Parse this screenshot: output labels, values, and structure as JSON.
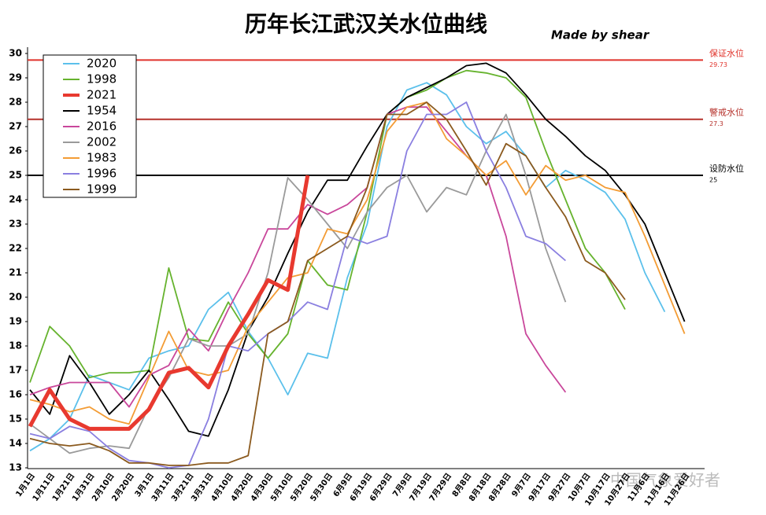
{
  "chart_data": {
    "type": "line",
    "title": "历年长江武汉关水位曲线",
    "subtitle": "Made  by shear",
    "watermark": "中国气象爱好者",
    "categories": [
      "1月1日",
      "1月11日",
      "1月21日",
      "1月31日",
      "2月10日",
      "2月20日",
      "3月1日",
      "3月11日",
      "3月21日",
      "3月31日",
      "4月10日",
      "4月20日",
      "4月30日",
      "5月10日",
      "5月20日",
      "5月30日",
      "6月9日",
      "6月19日",
      "6月29日",
      "7月9日",
      "7月19日",
      "7月29日",
      "8月8日",
      "8月18日",
      "8月28日",
      "9月7日",
      "9月17日",
      "9月27日",
      "10月7日",
      "10月17日",
      "10月27日",
      "11月6日",
      "11月16日",
      "11月26日"
    ],
    "ylim": [
      13,
      30
    ],
    "yticks": [
      13,
      14,
      15,
      16,
      17,
      18,
      19,
      20,
      21,
      22,
      23,
      24,
      25,
      26,
      27,
      28,
      29,
      30
    ],
    "reference_lines": [
      {
        "label": "保证水位",
        "value": 29.73,
        "color": "#e0332b"
      },
      {
        "label": "警戒水位",
        "value": 27.3,
        "color": "#b5302a"
      },
      {
        "label": "设防水位",
        "value": 25,
        "color": "#000000"
      }
    ],
    "series": [
      {
        "name": "2020",
        "color": "#5bc0eb",
        "values": [
          13.7,
          14.2,
          15.0,
          16.8,
          16.5,
          16.2,
          17.5,
          17.8,
          18.0,
          19.5,
          20.2,
          18.6,
          17.5,
          16.0,
          17.7,
          17.5,
          20.8,
          23.0,
          27.0,
          28.5,
          28.8,
          28.3,
          27.0,
          26.3,
          26.8,
          25.8,
          24.5,
          25.2,
          24.8,
          24.3,
          23.2,
          21.0,
          19.4,
          null
        ]
      },
      {
        "name": "1998",
        "color": "#66b32e",
        "values": [
          16.5,
          18.8,
          18.0,
          16.7,
          16.9,
          16.9,
          17.0,
          21.2,
          18.3,
          18.2,
          19.8,
          18.5,
          17.5,
          18.5,
          21.5,
          20.5,
          20.3,
          23.5,
          27.5,
          28.2,
          28.5,
          29.0,
          29.3,
          29.2,
          29.0,
          28.2,
          26.0,
          24.0,
          22.0,
          21.0,
          19.5,
          null,
          null,
          null
        ]
      },
      {
        "name": "2021",
        "color": "#e8392f",
        "values": [
          14.7,
          16.2,
          15.0,
          14.6,
          14.6,
          14.6,
          15.4,
          16.9,
          17.1,
          16.3,
          18.0,
          19.3,
          20.7,
          20.3,
          25.0,
          null,
          null,
          null,
          null,
          null,
          null,
          null,
          null,
          null,
          null,
          null,
          null,
          null,
          null,
          null,
          null,
          null,
          null,
          null
        ]
      },
      {
        "name": "1954",
        "color": "#000000",
        "values": [
          16.2,
          15.2,
          17.6,
          16.5,
          15.2,
          16.0,
          17.0,
          15.8,
          14.5,
          14.3,
          16.2,
          18.6,
          20.0,
          21.8,
          23.5,
          24.8,
          24.8,
          26.2,
          27.5,
          28.2,
          28.6,
          29.0,
          29.5,
          29.6,
          29.2,
          28.3,
          27.3,
          26.6,
          25.8,
          25.2,
          24.2,
          23.0,
          21.0,
          19.0
        ]
      },
      {
        "name": "2016",
        "color": "#c9479b",
        "values": [
          16.0,
          16.3,
          16.5,
          16.5,
          16.5,
          15.5,
          16.8,
          17.2,
          18.7,
          17.8,
          19.5,
          21.0,
          22.8,
          22.8,
          23.8,
          23.4,
          23.8,
          24.5,
          27.5,
          27.8,
          27.8,
          26.8,
          25.8,
          25.0,
          22.5,
          18.5,
          17.2,
          16.1,
          null,
          null,
          null,
          null,
          null,
          null
        ]
      },
      {
        "name": "2002",
        "color": "#9a9a9a",
        "values": [
          14.8,
          14.2,
          13.6,
          13.8,
          13.9,
          13.8,
          15.5,
          16.7,
          18.3,
          18.0,
          18.0,
          18.5,
          21.0,
          24.9,
          24.0,
          23.0,
          22.0,
          23.5,
          24.5,
          25.0,
          23.5,
          24.5,
          24.2,
          26.0,
          27.5,
          25.0,
          22.0,
          19.8,
          null,
          null,
          null,
          null,
          null,
          null
        ]
      },
      {
        "name": "1983",
        "color": "#f39c35",
        "values": [
          15.8,
          15.6,
          15.3,
          15.5,
          15.0,
          14.8,
          16.7,
          18.6,
          17.0,
          16.8,
          17.0,
          18.8,
          19.8,
          20.8,
          21.0,
          22.8,
          22.6,
          24.0,
          26.8,
          27.8,
          28.0,
          26.5,
          25.8,
          25.0,
          25.6,
          24.2,
          25.4,
          24.8,
          25.0,
          24.5,
          24.3,
          22.5,
          20.5,
          18.5
        ]
      },
      {
        "name": "1996",
        "color": "#8a7fe0",
        "values": [
          14.4,
          14.2,
          14.7,
          14.5,
          13.8,
          13.3,
          13.2,
          13.0,
          13.1,
          15.0,
          18.0,
          17.8,
          18.5,
          19.0,
          19.8,
          19.5,
          22.5,
          22.2,
          22.5,
          26.0,
          27.5,
          27.5,
          28.0,
          26.0,
          24.5,
          22.5,
          22.2,
          21.5,
          null,
          null,
          null,
          null,
          null,
          null
        ]
      },
      {
        "name": "1999",
        "color": "#8b5a1e",
        "values": [
          14.2,
          14.0,
          13.9,
          14.0,
          13.7,
          13.2,
          13.2,
          13.1,
          13.1,
          13.2,
          13.2,
          13.5,
          18.5,
          19.0,
          21.5,
          22.0,
          22.5,
          24.5,
          27.5,
          27.5,
          28.0,
          27.3,
          26.0,
          24.6,
          26.3,
          25.8,
          24.5,
          23.3,
          21.5,
          21.0,
          19.9,
          null,
          null,
          null
        ]
      }
    ]
  }
}
